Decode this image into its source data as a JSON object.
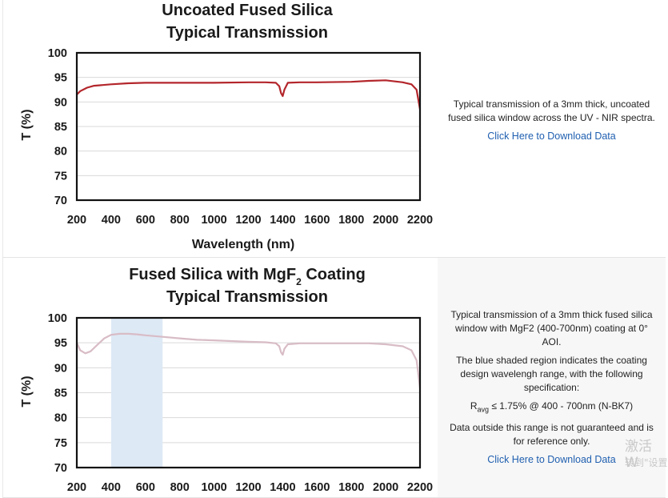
{
  "charts": [
    {
      "title_line1": "Uncoated Fused Silica",
      "title_line2": "Typical Transmission",
      "ylabel": "T (%)",
      "xlabel": "Wavelength (nm)",
      "xticks": [
        "200",
        "400",
        "600",
        "800",
        "1000",
        "1200",
        "1400",
        "1600",
        "1800",
        "2000",
        "2200"
      ],
      "yticks": [
        "100",
        "95",
        "90",
        "85",
        "80",
        "75",
        "70"
      ],
      "description": [
        "Typical transmission of a 3mm thick, uncoated fused silica window across the UV - NIR spectra."
      ],
      "download_label": "Click Here to Download Data"
    },
    {
      "title_line1_pre": "Fused Silica with MgF",
      "title_line1_sub": "2",
      "title_line1_post": " Coating",
      "title_line2": "Typical Transmission",
      "ylabel": "T (%)",
      "xticks": [
        "200",
        "400",
        "600",
        "800",
        "1000",
        "1200",
        "1400",
        "1600",
        "1800",
        "2000",
        "2200"
      ],
      "yticks": [
        "100",
        "95",
        "90",
        "85",
        "80",
        "75",
        "70"
      ],
      "description": [
        "Typical transmission of a 3mm thick fused silica window with MgF2 (400-700nm) coating at 0° AOI.",
        "The blue shaded region indicates the coating design wavelengh range, with the following specification:"
      ],
      "spec_pre": "R",
      "spec_sub": "avg",
      "spec_post": " ≤ 1.75% @ 400 - 700nm (N-BK7)",
      "note": "Data outside this range is not guaranteed and is for reference only.",
      "download_label": "Click Here to Download Data"
    }
  ],
  "watermark": {
    "line1": "激活 W",
    "line2": "转到\"设置"
  },
  "colors": {
    "series1": "#b3262b",
    "series2": "#d8bcc6",
    "shade": "#dde9f5",
    "link": "#1f5fb0"
  },
  "chart_data": [
    {
      "type": "line",
      "title": "Uncoated Fused Silica Typical Transmission",
      "xlabel": "Wavelength (nm)",
      "ylabel": "T (%)",
      "xlim": [
        200,
        2200
      ],
      "ylim": [
        70,
        100
      ],
      "grid": true,
      "series": [
        {
          "x": [
            200,
            220,
            260,
            300,
            400,
            500,
            600,
            800,
            1000,
            1200,
            1300,
            1360,
            1380,
            1390,
            1400,
            1410,
            1430,
            1500,
            1600,
            1800,
            1900,
            2000,
            2100,
            2150,
            2180,
            2200
          ],
          "y": [
            91.5,
            92.2,
            92.9,
            93.3,
            93.6,
            93.8,
            93.9,
            93.9,
            93.9,
            94.0,
            94.0,
            93.9,
            93.2,
            91.8,
            91.2,
            92.5,
            93.9,
            94.0,
            94.0,
            94.1,
            94.3,
            94.4,
            94.0,
            93.6,
            92.5,
            88.5
          ]
        }
      ]
    },
    {
      "type": "line",
      "title": "Fused Silica with MgF2 Coating Typical Transmission",
      "xlabel": "",
      "ylabel": "T (%)",
      "xlim": [
        200,
        2200
      ],
      "ylim": [
        70,
        100
      ],
      "grid": true,
      "shaded_region": [
        400,
        700
      ],
      "series": [
        {
          "x": [
            200,
            220,
            250,
            280,
            320,
            360,
            400,
            450,
            500,
            550,
            600,
            700,
            800,
            900,
            1000,
            1200,
            1300,
            1360,
            1380,
            1390,
            1400,
            1410,
            1430,
            1500,
            1600,
            1800,
            1900,
            2000,
            2100,
            2150,
            2180,
            2200
          ],
          "y": [
            95.0,
            93.5,
            92.9,
            93.3,
            94.6,
            95.9,
            96.6,
            96.8,
            96.8,
            96.7,
            96.5,
            96.2,
            95.9,
            95.6,
            95.5,
            95.2,
            95.1,
            94.9,
            94.3,
            93.1,
            92.6,
            93.8,
            94.7,
            94.9,
            94.9,
            94.9,
            94.9,
            94.7,
            94.3,
            93.5,
            91.5,
            86.0
          ]
        }
      ]
    }
  ]
}
